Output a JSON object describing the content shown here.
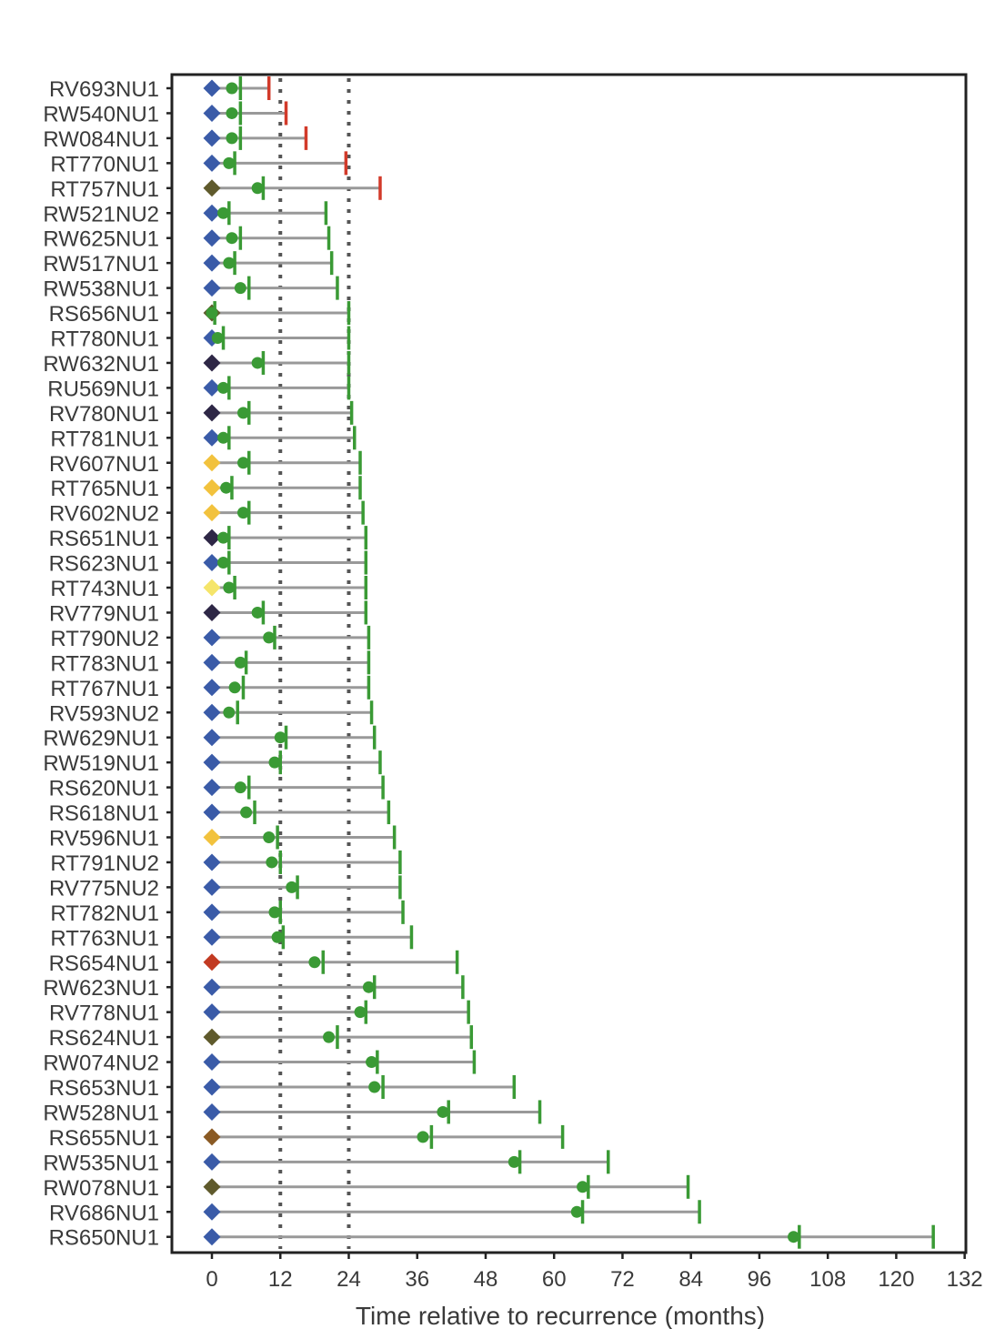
{
  "chart_data": {
    "type": "swimmer",
    "xlabel": "Time relative to recurrence (months)",
    "xlim": [
      -7,
      132
    ],
    "xticks": [
      0,
      12,
      24,
      36,
      48,
      60,
      72,
      84,
      96,
      108,
      120,
      132
    ],
    "reference_lines": [
      12,
      24
    ],
    "colors": {
      "blue": "#3a5ba8",
      "olive": "#5f5a2c",
      "navy": "#2e2746",
      "gold": "#f2c23d",
      "yellow": "#f5e56a",
      "red": "#c23a22",
      "brown": "#8a5a24",
      "dot": "#3a9a35",
      "green_tick": "#3a9a35",
      "red_tick": "#d23a2a",
      "bar": "#999999",
      "refline": "#555555"
    },
    "rows": [
      {
        "label": "RV693NU1",
        "marker": "blue",
        "dot": 3.5,
        "tick1": 5,
        "end": 10,
        "end_color": "red"
      },
      {
        "label": "RW540NU1",
        "marker": "blue",
        "dot": 3.5,
        "tick1": 5,
        "end": 13,
        "end_color": "red"
      },
      {
        "label": "RW084NU1",
        "marker": "blue",
        "dot": 3.5,
        "tick1": 5,
        "end": 16.5,
        "end_color": "red"
      },
      {
        "label": "RT770NU1",
        "marker": "blue",
        "dot": 3,
        "tick1": 4,
        "end": 23.5,
        "end_color": "red"
      },
      {
        "label": "RT757NU1",
        "marker": "olive",
        "dot": 8,
        "tick1": 9,
        "end": 29.5,
        "end_color": "red"
      },
      {
        "label": "RW521NU2",
        "marker": "blue",
        "dot": 2,
        "tick1": 3,
        "end": 20,
        "end_color": "green"
      },
      {
        "label": "RW625NU1",
        "marker": "blue",
        "dot": 3.5,
        "tick1": 5,
        "end": 20.5,
        "end_color": "green"
      },
      {
        "label": "RW517NU1",
        "marker": "blue",
        "dot": 3,
        "tick1": 4,
        "end": 21,
        "end_color": "green"
      },
      {
        "label": "RW538NU1",
        "marker": "blue",
        "dot": 5,
        "tick1": 6.5,
        "end": 22,
        "end_color": "green"
      },
      {
        "label": "RS656NU1",
        "marker": "olive",
        "dot": 0,
        "tick1": 0.5,
        "end": 24,
        "end_color": "green"
      },
      {
        "label": "RT780NU1",
        "marker": "blue",
        "dot": 1,
        "tick1": 2,
        "end": 24,
        "end_color": "green"
      },
      {
        "label": "RW632NU1",
        "marker": "navy",
        "dot": 8,
        "tick1": 9,
        "end": 24,
        "end_color": "green"
      },
      {
        "label": "RU569NU1",
        "marker": "blue",
        "dot": 2,
        "tick1": 3,
        "end": 24,
        "end_color": "green"
      },
      {
        "label": "RV780NU1",
        "marker": "navy",
        "dot": 5.5,
        "tick1": 6.5,
        "end": 24.5,
        "end_color": "green"
      },
      {
        "label": "RT781NU1",
        "marker": "blue",
        "dot": 2,
        "tick1": 3,
        "end": 25,
        "end_color": "green"
      },
      {
        "label": "RV607NU1",
        "marker": "gold",
        "dot": 5.5,
        "tick1": 6.5,
        "end": 26,
        "end_color": "green"
      },
      {
        "label": "RT765NU1",
        "marker": "gold",
        "dot": 2.5,
        "tick1": 3.5,
        "end": 26,
        "end_color": "green"
      },
      {
        "label": "RV602NU2",
        "marker": "gold",
        "dot": 5.5,
        "tick1": 6.5,
        "end": 26.5,
        "end_color": "green"
      },
      {
        "label": "RS651NU1",
        "marker": "navy",
        "dot": 2,
        "tick1": 3,
        "end": 27,
        "end_color": "green"
      },
      {
        "label": "RS623NU1",
        "marker": "blue",
        "dot": 2,
        "tick1": 3,
        "end": 27,
        "end_color": "green"
      },
      {
        "label": "RT743NU1",
        "marker": "yellow",
        "dot": 3,
        "tick1": 4,
        "end": 27,
        "end_color": "green"
      },
      {
        "label": "RV779NU1",
        "marker": "navy",
        "dot": 8,
        "tick1": 9,
        "end": 27,
        "end_color": "green"
      },
      {
        "label": "RT790NU2",
        "marker": "blue",
        "dot": 10,
        "tick1": 11,
        "end": 27.5,
        "end_color": "green"
      },
      {
        "label": "RT783NU1",
        "marker": "blue",
        "dot": 5,
        "tick1": 6,
        "end": 27.5,
        "end_color": "green"
      },
      {
        "label": "RT767NU1",
        "marker": "blue",
        "dot": 4,
        "tick1": 5.5,
        "end": 27.5,
        "end_color": "green"
      },
      {
        "label": "RV593NU2",
        "marker": "blue",
        "dot": 3,
        "tick1": 4.5,
        "end": 28,
        "end_color": "green"
      },
      {
        "label": "RW629NU1",
        "marker": "blue",
        "dot": 12,
        "tick1": 13,
        "end": 28.5,
        "end_color": "green"
      },
      {
        "label": "RW519NU1",
        "marker": "blue",
        "dot": 11,
        "tick1": 12,
        "end": 29.5,
        "end_color": "green"
      },
      {
        "label": "RS620NU1",
        "marker": "blue",
        "dot": 5,
        "tick1": 6.5,
        "end": 30,
        "end_color": "green"
      },
      {
        "label": "RS618NU1",
        "marker": "blue",
        "dot": 6,
        "tick1": 7.5,
        "end": 31,
        "end_color": "green"
      },
      {
        "label": "RV596NU1",
        "marker": "gold",
        "dot": 10,
        "tick1": 11.5,
        "end": 32,
        "end_color": "green"
      },
      {
        "label": "RT791NU2",
        "marker": "blue",
        "dot": 10.5,
        "tick1": 12,
        "end": 33,
        "end_color": "green"
      },
      {
        "label": "RV775NU2",
        "marker": "blue",
        "dot": 14,
        "tick1": 15,
        "end": 33,
        "end_color": "green"
      },
      {
        "label": "RT782NU1",
        "marker": "blue",
        "dot": 11,
        "tick1": 12,
        "end": 33.5,
        "end_color": "green"
      },
      {
        "label": "RT763NU1",
        "marker": "blue",
        "dot": 11.5,
        "tick1": 12.5,
        "end": 35,
        "end_color": "green"
      },
      {
        "label": "RS654NU1",
        "marker": "red",
        "dot": 18,
        "tick1": 19.5,
        "end": 43,
        "end_color": "green"
      },
      {
        "label": "RW623NU1",
        "marker": "blue",
        "dot": 27.5,
        "tick1": 28.5,
        "end": 44,
        "end_color": "green"
      },
      {
        "label": "RV778NU1",
        "marker": "blue",
        "dot": 26,
        "tick1": 27,
        "end": 45,
        "end_color": "green"
      },
      {
        "label": "RS624NU1",
        "marker": "olive",
        "dot": 20.5,
        "tick1": 22,
        "end": 45.5,
        "end_color": "green"
      },
      {
        "label": "RW074NU2",
        "marker": "blue",
        "dot": 28,
        "tick1": 29,
        "end": 46,
        "end_color": "green"
      },
      {
        "label": "RS653NU1",
        "marker": "blue",
        "dot": 28.5,
        "tick1": 30,
        "end": 53,
        "end_color": "green"
      },
      {
        "label": "RW528NU1",
        "marker": "blue",
        "dot": 40.5,
        "tick1": 41.5,
        "end": 57.5,
        "end_color": "green"
      },
      {
        "label": "RS655NU1",
        "marker": "brown",
        "dot": 37,
        "tick1": 38.5,
        "end": 61.5,
        "end_color": "green"
      },
      {
        "label": "RW535NU1",
        "marker": "blue",
        "dot": 53,
        "tick1": 54,
        "end": 69.5,
        "end_color": "green"
      },
      {
        "label": "RW078NU1",
        "marker": "olive",
        "dot": 65,
        "tick1": 66,
        "end": 83.5,
        "end_color": "green"
      },
      {
        "label": "RV686NU1",
        "marker": "blue",
        "dot": 64,
        "tick1": 65,
        "end": 85.5,
        "end_color": "green"
      },
      {
        "label": "RS650NU1",
        "marker": "blue",
        "dot": 102,
        "tick1": 103,
        "end": 126.5,
        "end_color": "green"
      }
    ]
  }
}
